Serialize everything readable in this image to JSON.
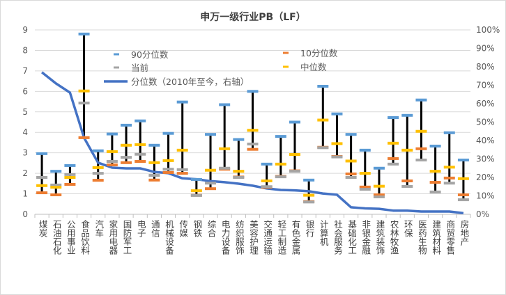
{
  "chart_data": {
    "type": "box-range-with-line",
    "title": "申万一级行业PB（LF）",
    "categories": [
      "煤炭",
      "石油石化",
      "公用事业",
      "食品饮料",
      "汽车",
      "家用电器",
      "国防军工",
      "电子",
      "通信",
      "机械设备",
      "传媒",
      "钢铁",
      "综合",
      "电力设备",
      "纺织服饰",
      "美容护理",
      "交通运输",
      "轻工制造",
      "有色金属",
      "银行",
      "计算机",
      "社会服务",
      "基础化工",
      "非银金融",
      "建筑装饰",
      "农林牧渔",
      "环保",
      "医药生物",
      "建筑材料",
      "商贸零售",
      "房地产"
    ],
    "series": [
      {
        "name": "90分位数",
        "axis": "left",
        "color": "#5B9BD5",
        "values": [
          2.96,
          2.1,
          2.38,
          8.8,
          3.1,
          3.92,
          4.35,
          4.56,
          3.37,
          3.95,
          5.48,
          1.7,
          3.9,
          5.35,
          3.65,
          6.0,
          2.45,
          3.8,
          4.5,
          1.67,
          6.25,
          4.9,
          3.9,
          3.13,
          2.25,
          4.72,
          4.83,
          5.58,
          3.33,
          3.98,
          2.65
        ]
      },
      {
        "name": "10分位数",
        "axis": "left",
        "color": "#ED7D31",
        "values": [
          1.05,
          0.95,
          1.46,
          3.74,
          1.66,
          2.41,
          2.52,
          2.58,
          1.67,
          2.04,
          2.0,
          0.93,
          1.25,
          2.2,
          1.82,
          3.17,
          1.32,
          1.85,
          2.12,
          0.62,
          3.27,
          2.82,
          1.97,
          1.33,
          0.95,
          2.72,
          1.63,
          3.2,
          1.56,
          1.77,
          0.95
        ]
      },
      {
        "name": "当前",
        "axis": "left",
        "color": "#A5A5A5",
        "values": [
          1.8,
          1.43,
          1.94,
          5.43,
          2.0,
          2.58,
          2.78,
          2.93,
          1.9,
          2.2,
          2.18,
          0.92,
          1.52,
          2.25,
          1.8,
          3.43,
          1.35,
          1.83,
          2.1,
          0.6,
          3.25,
          2.8,
          1.8,
          1.22,
          0.85,
          2.45,
          1.36,
          2.65,
          1.09,
          1.52,
          0.71
        ]
      },
      {
        "name": "中位数",
        "axis": "left",
        "color": "#FFC000",
        "values": [
          1.4,
          1.32,
          1.8,
          6.02,
          2.28,
          3.06,
          3.37,
          3.4,
          2.52,
          2.62,
          3.13,
          1.15,
          2.15,
          3.2,
          2.1,
          4.1,
          1.63,
          2.45,
          2.92,
          0.93,
          4.6,
          3.45,
          2.6,
          2.0,
          1.37,
          3.47,
          3.13,
          4.05,
          2.1,
          2.3,
          1.74
        ]
      },
      {
        "name": "分位数（2010年至今，右轴）",
        "axis": "right",
        "color": "#4472C4",
        "type": "line",
        "values": [
          77,
          71,
          66,
          41.5,
          28,
          25.3,
          24.9,
          24.9,
          23,
          22.3,
          19.5,
          19,
          18,
          17.4,
          16.6,
          15.5,
          14,
          13.2,
          13,
          12.5,
          11.3,
          10.6,
          3.8,
          3.2,
          3.0,
          2.0,
          2.0,
          1.5,
          1.5,
          1.5,
          0.6
        ]
      }
    ],
    "ylim_left": [
      0,
      9
    ],
    "yticks_left": [
      "0",
      "1",
      "2",
      "3",
      "4",
      "5",
      "6",
      "7",
      "8",
      "9"
    ],
    "ylim_right": [
      0,
      100
    ],
    "yticks_right": [
      "0%",
      "10%",
      "20%",
      "30%",
      "40%",
      "50%",
      "60%",
      "70%",
      "80%",
      "90%",
      "100%"
    ],
    "grid": true,
    "legend_position": "top-center"
  }
}
